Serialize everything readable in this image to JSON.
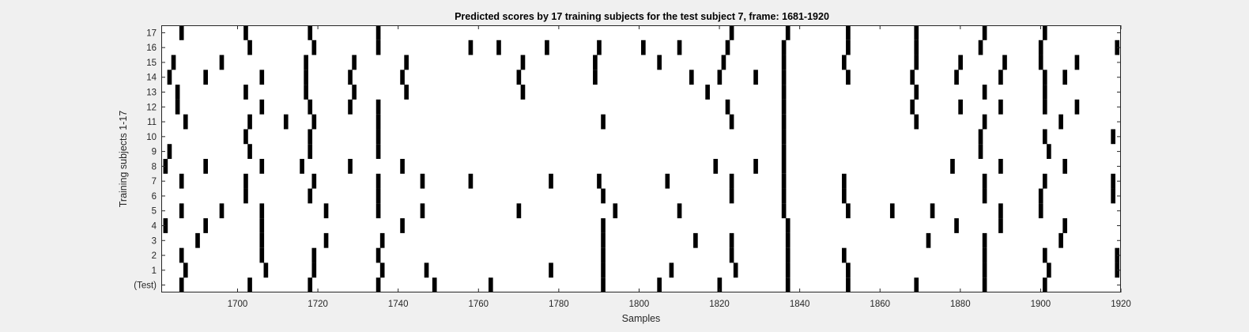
{
  "chart_data": {
    "type": "heatmap",
    "title": "Predicted scores by 17 training subjects for the test subject 7, frame: 1681-1920",
    "xlabel": "Samples",
    "ylabel": "Training subjects 1-17",
    "xlim": [
      1681,
      1920
    ],
    "x_ticks": [
      1700,
      1720,
      1740,
      1760,
      1780,
      1800,
      1820,
      1840,
      1860,
      1880,
      1900,
      1920
    ],
    "y_tick_labels": [
      "(Test)",
      "1",
      "2",
      "3",
      "4",
      "5",
      "6",
      "7",
      "8",
      "9",
      "10",
      "11",
      "12",
      "13",
      "14",
      "15",
      "16",
      "17"
    ],
    "colors": {
      "mark": "#000000",
      "background": "#ffffff",
      "figure": "#f0f0f0"
    },
    "rows": [
      {
        "label": "(Test)",
        "x": [
          1686,
          1703,
          1718,
          1735,
          1749,
          1763,
          1791,
          1805,
          1820,
          1837,
          1852,
          1869,
          1886,
          1901
        ]
      },
      {
        "label": "1",
        "x": [
          1687,
          1707,
          1719,
          1736,
          1747,
          1778,
          1791,
          1808,
          1824,
          1837,
          1852,
          1886,
          1902,
          1919
        ]
      },
      {
        "label": "2",
        "x": [
          1686,
          1706,
          1719,
          1735,
          1791,
          1823,
          1837,
          1851,
          1886,
          1901,
          1919
        ]
      },
      {
        "label": "3",
        "x": [
          1690,
          1706,
          1722,
          1736,
          1791,
          1814,
          1823,
          1837,
          1872,
          1886,
          1905
        ]
      },
      {
        "label": "4",
        "x": [
          1682,
          1692,
          1706,
          1741,
          1791,
          1837,
          1879,
          1890,
          1906
        ]
      },
      {
        "label": "5",
        "x": [
          1686,
          1696,
          1706,
          1722,
          1735,
          1746,
          1770,
          1794,
          1810,
          1836,
          1852,
          1863,
          1873,
          1890,
          1900
        ]
      },
      {
        "label": "6",
        "x": [
          1702,
          1718,
          1735,
          1791,
          1823,
          1836,
          1851,
          1886,
          1900,
          1918
        ]
      },
      {
        "label": "7",
        "x": [
          1686,
          1702,
          1719,
          1735,
          1746,
          1758,
          1778,
          1790,
          1807,
          1823,
          1836,
          1851,
          1886,
          1901,
          1918
        ]
      },
      {
        "label": "8",
        "x": [
          1682,
          1692,
          1706,
          1716,
          1728,
          1741,
          1819,
          1829,
          1836,
          1878,
          1890,
          1906
        ]
      },
      {
        "label": "9",
        "x": [
          1683,
          1703,
          1718,
          1735,
          1836,
          1885,
          1902
        ]
      },
      {
        "label": "10",
        "x": [
          1702,
          1718,
          1735,
          1836,
          1885,
          1901,
          1918
        ]
      },
      {
        "label": "11",
        "x": [
          1687,
          1703,
          1712,
          1719,
          1735,
          1791,
          1823,
          1836,
          1869,
          1886,
          1905
        ]
      },
      {
        "label": "12",
        "x": [
          1685,
          1706,
          1718,
          1728,
          1735,
          1822,
          1836,
          1868,
          1880,
          1890,
          1901,
          1909
        ]
      },
      {
        "label": "13",
        "x": [
          1685,
          1702,
          1717,
          1729,
          1742,
          1771,
          1817,
          1836,
          1869,
          1886,
          1901
        ]
      },
      {
        "label": "14",
        "x": [
          1683,
          1692,
          1706,
          1717,
          1728,
          1741,
          1770,
          1789,
          1813,
          1820,
          1829,
          1836,
          1852,
          1868,
          1879,
          1890,
          1901,
          1906
        ]
      },
      {
        "label": "15",
        "x": [
          1684,
          1696,
          1717,
          1729,
          1742,
          1771,
          1789,
          1805,
          1821,
          1836,
          1851,
          1869,
          1880,
          1891,
          1900,
          1909
        ]
      },
      {
        "label": "16",
        "x": [
          1703,
          1719,
          1735,
          1758,
          1765,
          1777,
          1790,
          1801,
          1810,
          1822,
          1836,
          1852,
          1869,
          1885,
          1900,
          1919
        ]
      },
      {
        "label": "17",
        "x": [
          1686,
          1702,
          1718,
          1735,
          1823,
          1837,
          1852,
          1869,
          1886,
          1901
        ]
      }
    ]
  }
}
